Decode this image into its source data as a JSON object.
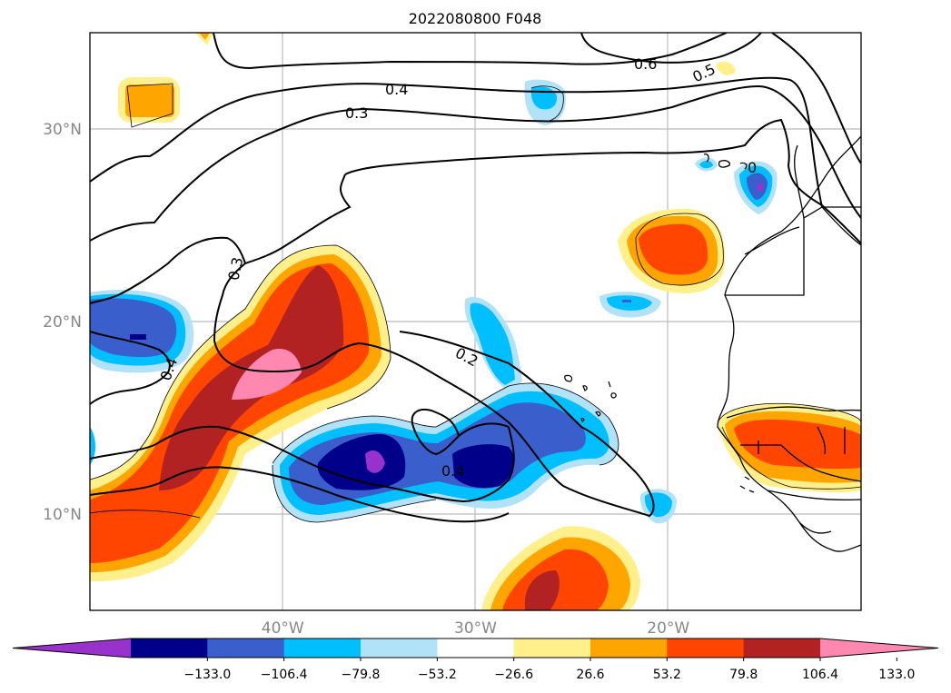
{
  "map": {
    "title": "2022080800 F048",
    "lat_ticks": [
      {
        "value": 30,
        "label": "30°N"
      },
      {
        "value": 20,
        "label": "20°N"
      },
      {
        "value": 10,
        "label": "10°N"
      }
    ],
    "lon_ticks": [
      {
        "value": -40,
        "label": "40°W"
      },
      {
        "value": -30,
        "label": "30°W"
      },
      {
        "value": -20,
        "label": "20°W"
      }
    ],
    "extent": {
      "lon": [
        -50,
        -10
      ],
      "lat": [
        5,
        35
      ]
    },
    "contour_labels": [
      "0.6",
      "0.5",
      "0.4",
      "0.3",
      "0.3",
      "0.4",
      "0.2",
      "0.4",
      "0"
    ]
  },
  "colorbar": {
    "colors": [
      "#9932cc",
      "#00008b",
      "#3a5fcd",
      "#00bfff",
      "#b2e2f8",
      "#ffffff",
      "#fff08c",
      "#ffa500",
      "#ff4500",
      "#b22222",
      "#ff88b0"
    ],
    "tick_labels": [
      "−133.0",
      "−106.4",
      "−79.8",
      "−53.2",
      "−26.6",
      "26.6",
      "53.2",
      "79.8",
      "106.4",
      "133.0"
    ]
  }
}
